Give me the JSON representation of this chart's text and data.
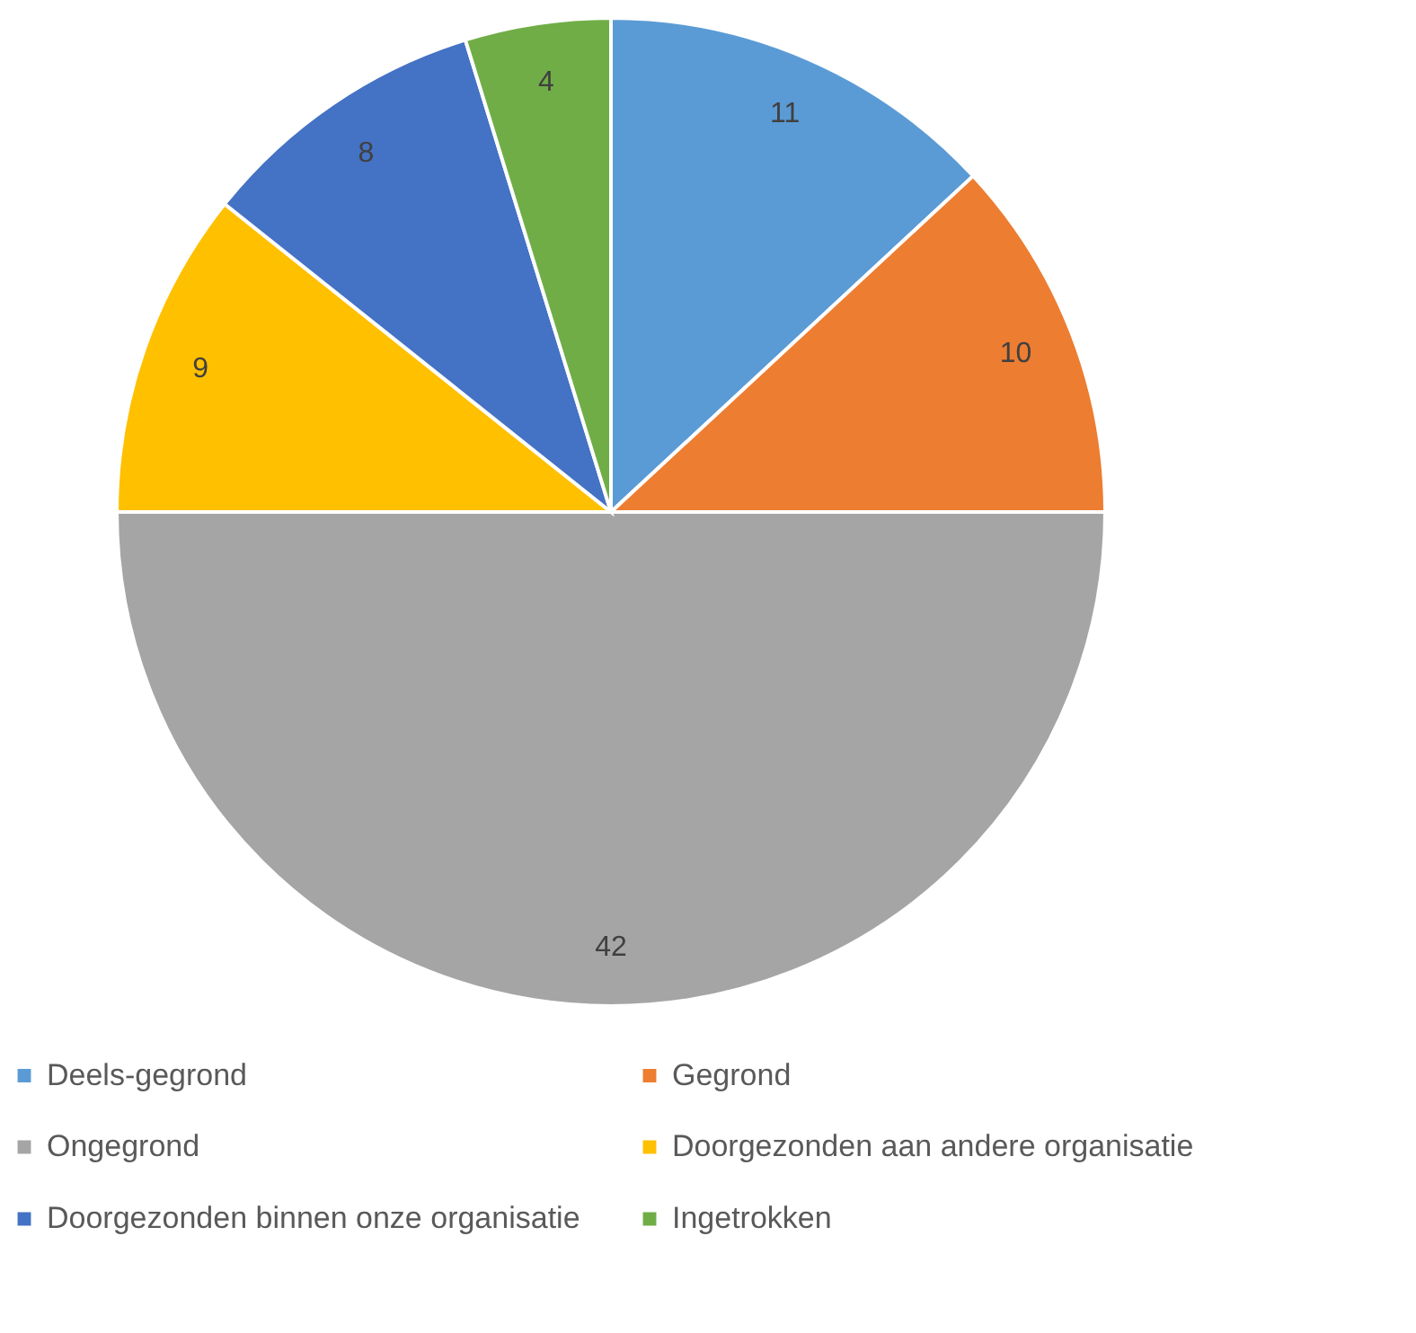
{
  "chart_data": {
    "type": "pie",
    "categories": [
      "Deels-gegrond",
      "Gegrond",
      "Ongegrond",
      "Doorgezonden aan andere organisatie",
      "Doorgezonden binnen onze organisatie",
      "Ingetrokken"
    ],
    "values": [
      11,
      10,
      42,
      9,
      8,
      4
    ],
    "colors": [
      "#5b9bd5",
      "#ed7d31",
      "#a5a5a5",
      "#ffc000",
      "#4472c4",
      "#70ad47"
    ],
    "data_labels": true,
    "legend": "bottom"
  }
}
